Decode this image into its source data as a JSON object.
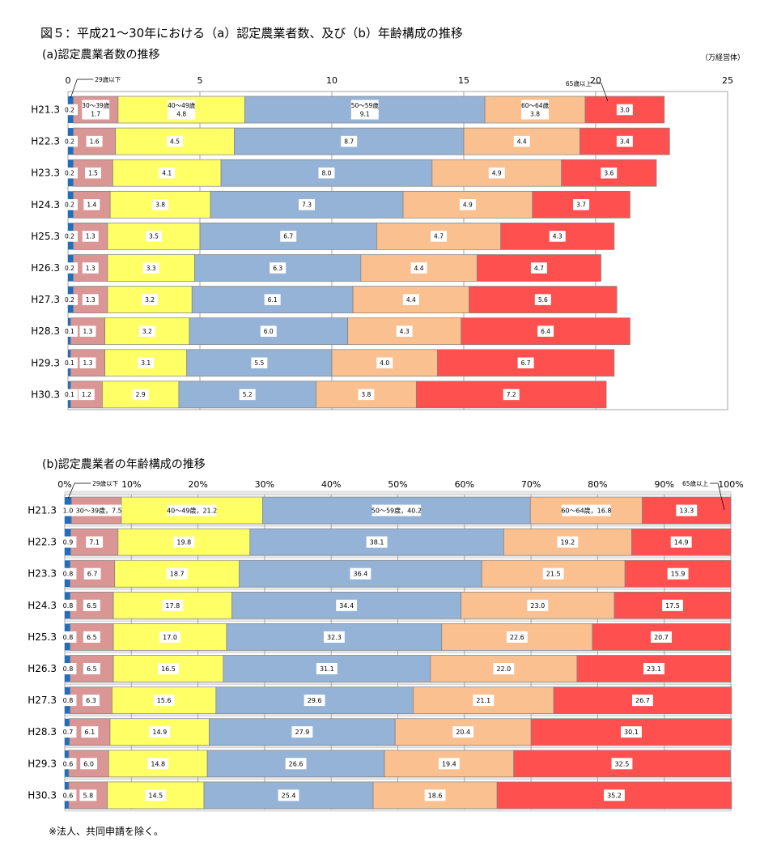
{
  "title": "図５：平成21～30年における（a）認定農業者数、及び（b）年齢構成の推移",
  "footnote": "※法人、共同申請を除く。",
  "colors": {
    "29歳以下": "#1f6fbf",
    "30～39歳": "#d99694",
    "40～49歳": "#ffff66",
    "50～59歳": "#95b3d7",
    "60～64歳": "#fac090",
    "65歳以上": "#ff5050"
  },
  "chart_data": [
    {
      "type": "bar",
      "orientation": "horizontal",
      "stacked": true,
      "title": "(a)認定農業者数の推移",
      "unit": "（万経営体）",
      "xlim": [
        0,
        25
      ],
      "xticks": [
        "0",
        "5",
        "10",
        "15",
        "20",
        "25"
      ],
      "grid": true,
      "categories": [
        "H21.3",
        "H22.3",
        "H23.3",
        "H24.3",
        "H25.3",
        "H26.3",
        "H27.3",
        "H28.3",
        "H29.3",
        "H30.3"
      ],
      "series": [
        {
          "name": "29歳以下",
          "values": [
            0.2,
            0.2,
            0.2,
            0.2,
            0.2,
            0.2,
            0.2,
            0.1,
            0.1,
            0.1
          ]
        },
        {
          "name": "30～39歳",
          "values": [
            1.7,
            1.6,
            1.5,
            1.4,
            1.3,
            1.3,
            1.3,
            1.3,
            1.3,
            1.2
          ]
        },
        {
          "name": "40～49歳",
          "values": [
            4.8,
            4.5,
            4.1,
            3.8,
            3.5,
            3.3,
            3.2,
            3.2,
            3.1,
            2.9
          ]
        },
        {
          "name": "50～59歳",
          "values": [
            9.1,
            8.7,
            8.0,
            7.3,
            6.7,
            6.3,
            6.1,
            6.0,
            5.5,
            5.2
          ]
        },
        {
          "name": "60～64歳",
          "values": [
            3.8,
            4.4,
            4.9,
            4.9,
            4.7,
            4.4,
            4.4,
            4.3,
            4.0,
            3.8
          ]
        },
        {
          "name": "65歳以上",
          "values": [
            3.0,
            3.4,
            3.6,
            3.7,
            4.3,
            4.7,
            5.6,
            6.4,
            6.7,
            7.2
          ]
        }
      ]
    },
    {
      "type": "bar",
      "orientation": "horizontal",
      "stacked": true,
      "title": "(b)認定農業者の年齢構成の推移",
      "xlim": [
        0,
        100
      ],
      "xticks": [
        "0%",
        "10%",
        "20%",
        "30%",
        "40%",
        "50%",
        "60%",
        "70%",
        "80%",
        "90%",
        "100%"
      ],
      "grid": true,
      "categories": [
        "H21.3",
        "H22.3",
        "H23.3",
        "H24.3",
        "H25.3",
        "H26.3",
        "H27.3",
        "H28.3",
        "H29.3",
        "H30.3"
      ],
      "series": [
        {
          "name": "29歳以下",
          "values": [
            1.0,
            0.9,
            0.8,
            0.8,
            0.8,
            0.8,
            0.8,
            0.7,
            0.6,
            0.6
          ]
        },
        {
          "name": "30～39歳",
          "values": [
            7.5,
            7.1,
            6.7,
            6.5,
            6.5,
            6.5,
            6.3,
            6.1,
            6.0,
            5.8
          ]
        },
        {
          "name": "40～49歳",
          "values": [
            21.2,
            19.8,
            18.7,
            17.8,
            17.0,
            16.5,
            15.6,
            14.9,
            14.8,
            14.5
          ]
        },
        {
          "name": "50～59歳",
          "values": [
            40.2,
            38.1,
            36.4,
            34.4,
            32.3,
            31.1,
            29.6,
            27.9,
            26.6,
            25.4
          ]
        },
        {
          "name": "60～64歳",
          "values": [
            16.8,
            19.2,
            21.5,
            23.0,
            22.6,
            22.0,
            21.1,
            20.4,
            19.4,
            18.6
          ]
        },
        {
          "name": "65歳以上",
          "values": [
            13.3,
            14.9,
            15.9,
            17.5,
            20.7,
            23.1,
            26.7,
            30.1,
            32.5,
            35.2
          ]
        }
      ]
    }
  ]
}
